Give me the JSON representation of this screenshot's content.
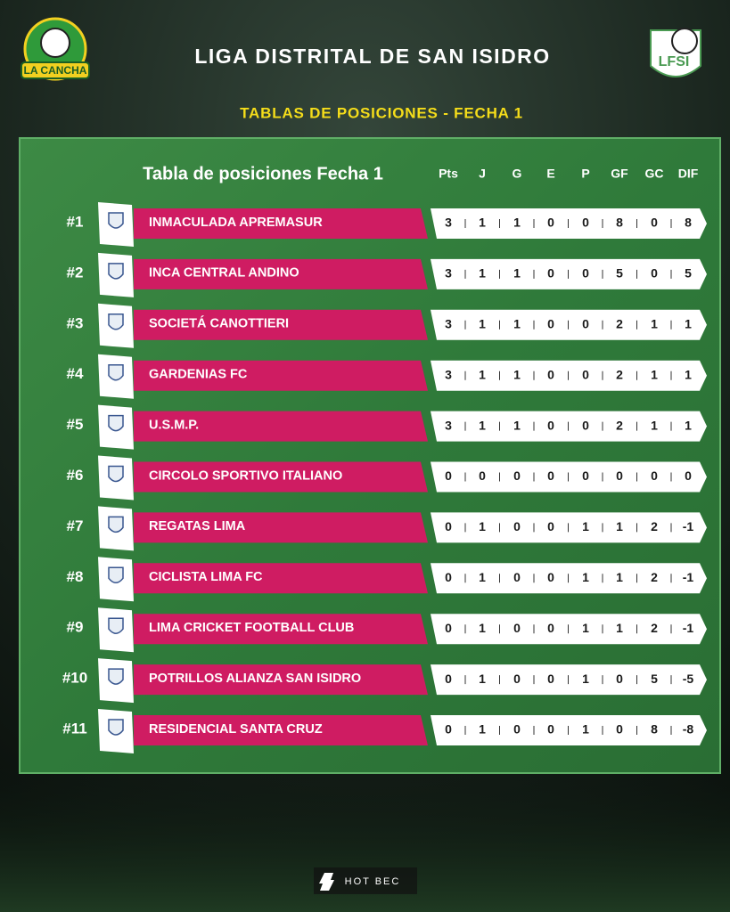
{
  "header": {
    "title": "LIGA DISTRITAL DE SAN ISIDRO",
    "subtitle": "TABLAS DE POSICIONES - FECHA 1",
    "left_logo": "LA CANCHA",
    "right_logo": "LFSI"
  },
  "table": {
    "title": "Tabla de posiciones Fecha 1",
    "columns": [
      "Pts",
      "J",
      "G",
      "E",
      "P",
      "GF",
      "GC",
      "DIF"
    ],
    "rows": [
      {
        "rank": "#1",
        "team": "INMACULADA APREMASUR",
        "stats": [
          3,
          1,
          1,
          0,
          0,
          8,
          0,
          8
        ]
      },
      {
        "rank": "#2",
        "team": "INCA CENTRAL ANDINO",
        "stats": [
          3,
          1,
          1,
          0,
          0,
          5,
          0,
          5
        ]
      },
      {
        "rank": "#3",
        "team": "SOCIETÁ CANOTTIERI",
        "stats": [
          3,
          1,
          1,
          0,
          0,
          2,
          1,
          1
        ]
      },
      {
        "rank": "#4",
        "team": "GARDENIAS FC",
        "stats": [
          3,
          1,
          1,
          0,
          0,
          2,
          1,
          1
        ]
      },
      {
        "rank": "#5",
        "team": "U.S.M.P.",
        "stats": [
          3,
          1,
          1,
          0,
          0,
          2,
          1,
          1
        ]
      },
      {
        "rank": "#6",
        "team": "CIRCOLO SPORTIVO ITALIANO",
        "stats": [
          0,
          0,
          0,
          0,
          0,
          0,
          0,
          0
        ]
      },
      {
        "rank": "#7",
        "team": "REGATAS LIMA",
        "stats": [
          0,
          1,
          0,
          0,
          1,
          1,
          2,
          -1
        ]
      },
      {
        "rank": "#8",
        "team": "CICLISTA LIMA FC",
        "stats": [
          0,
          1,
          0,
          0,
          1,
          1,
          2,
          -1
        ]
      },
      {
        "rank": "#9",
        "team": "LIMA CRICKET FOOTBALL CLUB",
        "stats": [
          0,
          1,
          0,
          0,
          1,
          1,
          2,
          -1
        ]
      },
      {
        "rank": "#10",
        "team": "POTRILLOS ALIANZA SAN ISIDRO",
        "stats": [
          0,
          1,
          0,
          0,
          1,
          0,
          5,
          -5
        ]
      },
      {
        "rank": "#11",
        "team": "RESIDENCIAL SANTA CRUZ",
        "stats": [
          0,
          1,
          0,
          0,
          1,
          0,
          8,
          -8
        ]
      }
    ]
  },
  "footer": {
    "brand": "HOT BEC"
  }
}
